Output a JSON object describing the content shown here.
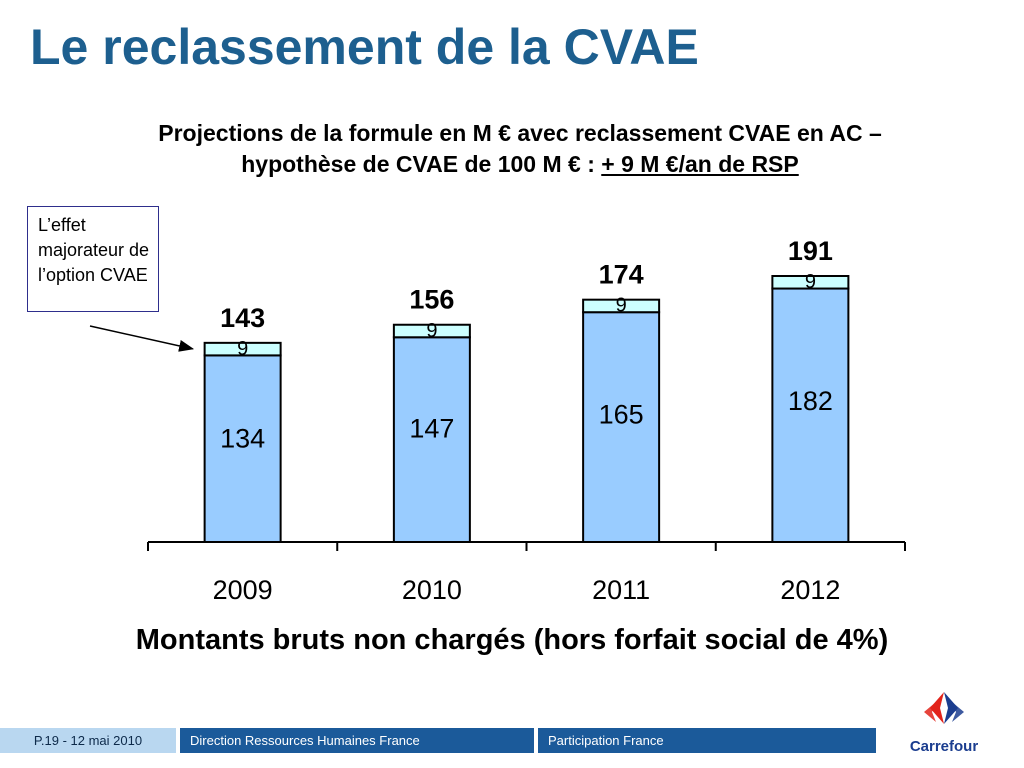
{
  "title": "Le reclassement de la CVAE",
  "subtitle": {
    "line1": "Projections de la formule en M € avec reclassement CVAE en AC –",
    "line2_plain": "hypothèse de CVAE de 100 M € : ",
    "line2_underlined": "+ 9 M €/an de RSP"
  },
  "callout": {
    "text": "L’effet majorateur de l’option CVAE"
  },
  "caption": "Montants bruts non chargés (hors forfait social de 4%)",
  "footer": {
    "page": "P.19 - 12 mai 2010",
    "department": "Direction Ressources Humaines France",
    "section": "Participation France"
  },
  "logo": {
    "text": "Carrefour",
    "icon": "carrefour-logo-icon"
  },
  "colors": {
    "title": "#1d5f8f",
    "base_bar": "#99ccff",
    "top_bar": "#ccffff",
    "footer_dark": "#1b5a9a",
    "footer_light": "#b9d7f0"
  },
  "chart_data": {
    "type": "bar",
    "stacked": true,
    "categories": [
      "2009",
      "2010",
      "2011",
      "2012"
    ],
    "series": [
      {
        "values": [
          134,
          147,
          165,
          182
        ],
        "color": "#99ccff"
      },
      {
        "values": [
          9,
          9,
          9,
          9
        ],
        "color": "#ccffff"
      }
    ],
    "totals": [
      143,
      156,
      174,
      191
    ],
    "ylim": [
      0,
      191
    ],
    "grid": false,
    "legend": "none"
  }
}
